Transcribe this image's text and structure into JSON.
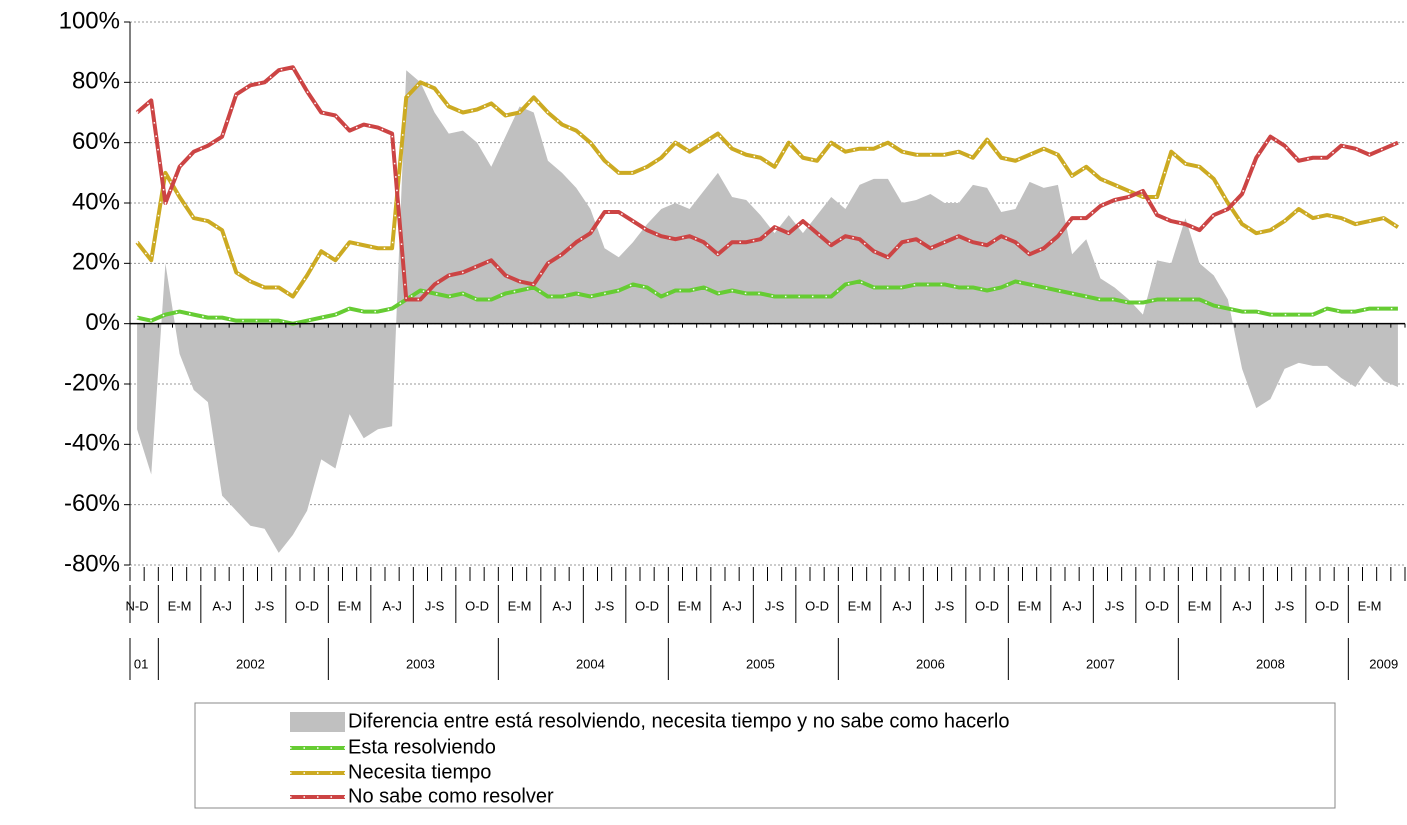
{
  "chart_data": {
    "type": "line",
    "categories": [
      "N-D",
      null,
      null,
      "E-M",
      null,
      null,
      "A-J",
      null,
      null,
      "J-S",
      null,
      null,
      "O-D",
      null,
      null,
      "E-M",
      null,
      null,
      "A-J",
      null,
      null,
      "J-S",
      null,
      null,
      "O-D",
      null,
      null,
      "E-M",
      null,
      null,
      "A-J",
      null,
      null,
      "J-S",
      null,
      null,
      "O-D",
      null,
      null,
      "E-M",
      null,
      null,
      "A-J",
      null,
      null,
      "J-S",
      null,
      null,
      "O-D",
      null,
      null,
      "E-M",
      null,
      null,
      "A-J",
      null,
      null,
      "J-S",
      null,
      null,
      "O-D",
      null,
      null,
      "E-M",
      null,
      null,
      "A-J",
      null,
      null,
      "J-S",
      null,
      null,
      "O-D",
      null,
      null,
      "E-M",
      null,
      null,
      "A-J",
      null,
      null,
      "J-S",
      null,
      null,
      "O-D",
      null,
      null,
      "E-M",
      null,
      null
    ],
    "year_labels": [
      "01",
      null,
      null,
      null,
      null,
      null,
      null,
      null,
      "2002",
      null,
      null,
      null,
      null,
      null,
      null,
      null,
      null,
      null,
      null,
      null,
      "2003",
      null,
      null,
      null,
      null,
      null,
      null,
      null,
      null,
      null,
      null,
      null,
      "2004",
      null,
      null,
      null,
      null,
      null,
      null,
      null,
      null,
      null,
      null,
      null,
      "2005",
      null,
      null,
      null,
      null,
      null,
      null,
      null,
      null,
      null,
      null,
      null,
      "2006",
      null,
      null,
      null,
      null,
      null,
      null,
      null,
      null,
      null,
      null,
      null,
      "2007",
      null,
      null,
      null,
      null,
      null,
      null,
      null,
      null,
      null,
      null,
      null,
      "2008",
      null,
      null,
      null,
      null,
      null,
      null,
      null,
      "2009",
      null
    ],
    "series": [
      {
        "name": "Diferencia entre está resolviendo, necesita tiempo y no sabe como hacerlo",
        "type": "area",
        "color": "#c0c0c0",
        "values": [
          -35,
          -50,
          20,
          -10,
          -22,
          -26,
          -57,
          -62,
          -67,
          -68,
          -76,
          -70,
          -62,
          -45,
          -48,
          -30,
          -38,
          -35,
          -34,
          84,
          80,
          70,
          63,
          64,
          60,
          52,
          62,
          72,
          70,
          54,
          50,
          45,
          38,
          25,
          22,
          27,
          33,
          38,
          40,
          38,
          44,
          50,
          42,
          41,
          36,
          30,
          36,
          30,
          36,
          42,
          38,
          46,
          48,
          48,
          40,
          41,
          43,
          40,
          40,
          46,
          45,
          37,
          38,
          47,
          45,
          46,
          23,
          28,
          15,
          12,
          8,
          3,
          21,
          20,
          35,
          20,
          16,
          8,
          -15,
          -28,
          -25,
          -15,
          -13,
          -14,
          -14,
          -18,
          -21,
          -14,
          -19,
          -21
        ]
      },
      {
        "name": "Esta resolviendo",
        "type": "line",
        "color": "#66cc33",
        "values": [
          2,
          1,
          3,
          4,
          3,
          2,
          2,
          1,
          1,
          1,
          1,
          0,
          1,
          2,
          3,
          5,
          4,
          4,
          5,
          8,
          11,
          10,
          9,
          10,
          8,
          8,
          10,
          11,
          12,
          9,
          9,
          10,
          9,
          10,
          11,
          13,
          12,
          9,
          11,
          11,
          12,
          10,
          11,
          10,
          10,
          9,
          9,
          9,
          9,
          9,
          13,
          14,
          12,
          12,
          12,
          13,
          13,
          13,
          12,
          12,
          11,
          12,
          14,
          13,
          12,
          11,
          10,
          9,
          8,
          8,
          7,
          7,
          8,
          8,
          8,
          8,
          6,
          5,
          4,
          4,
          3,
          3,
          3,
          3,
          5,
          4,
          4,
          5,
          5,
          5
        ]
      },
      {
        "name": "Necesita tiempo",
        "type": "line",
        "color": "#ccaa22",
        "values": [
          27,
          21,
          50,
          42,
          35,
          34,
          31,
          17,
          14,
          12,
          12,
          9,
          16,
          24,
          21,
          27,
          26,
          25,
          25,
          75,
          80,
          78,
          72,
          70,
          71,
          73,
          69,
          70,
          75,
          70,
          66,
          64,
          60,
          54,
          50,
          50,
          52,
          55,
          60,
          57,
          60,
          63,
          58,
          56,
          55,
          52,
          60,
          55,
          54,
          60,
          57,
          58,
          58,
          60,
          57,
          56,
          56,
          56,
          57,
          55,
          61,
          55,
          54,
          56,
          58,
          56,
          49,
          52,
          48,
          46,
          44,
          42,
          42,
          57,
          53,
          52,
          48,
          40,
          33,
          30,
          31,
          34,
          38,
          35,
          36,
          35,
          33,
          34,
          35,
          32
        ]
      },
      {
        "name": "No  sabe como resolver",
        "type": "line",
        "color": "#cc4444",
        "values": [
          70,
          74,
          40,
          52,
          57,
          59,
          62,
          76,
          79,
          80,
          84,
          85,
          77,
          70,
          69,
          64,
          66,
          65,
          63,
          8,
          8,
          13,
          16,
          17,
          19,
          21,
          16,
          14,
          13,
          20,
          23,
          27,
          30,
          37,
          37,
          34,
          31,
          29,
          28,
          29,
          27,
          23,
          27,
          27,
          28,
          32,
          30,
          34,
          30,
          26,
          29,
          28,
          24,
          22,
          27,
          28,
          25,
          27,
          29,
          27,
          26,
          29,
          27,
          23,
          25,
          29,
          35,
          35,
          39,
          41,
          42,
          44,
          36,
          34,
          33,
          31,
          36,
          38,
          43,
          55,
          62,
          59,
          54,
          55,
          55,
          59,
          58,
          56,
          58,
          60
        ]
      }
    ],
    "ylim": [
      -80,
      100
    ],
    "yticks": [
      {
        "value": -80,
        "label": "-80%"
      },
      {
        "value": -60,
        "label": "-60%"
      },
      {
        "value": -40,
        "label": "-40%"
      },
      {
        "value": -20,
        "label": "-20%"
      },
      {
        "value": 0,
        "label": "0%"
      },
      {
        "value": 20,
        "label": "20%"
      },
      {
        "value": 40,
        "label": "40%"
      },
      {
        "value": 60,
        "label": "60%"
      },
      {
        "value": 80,
        "label": "80%"
      },
      {
        "value": 100,
        "label": "100%"
      }
    ],
    "grid": true
  }
}
